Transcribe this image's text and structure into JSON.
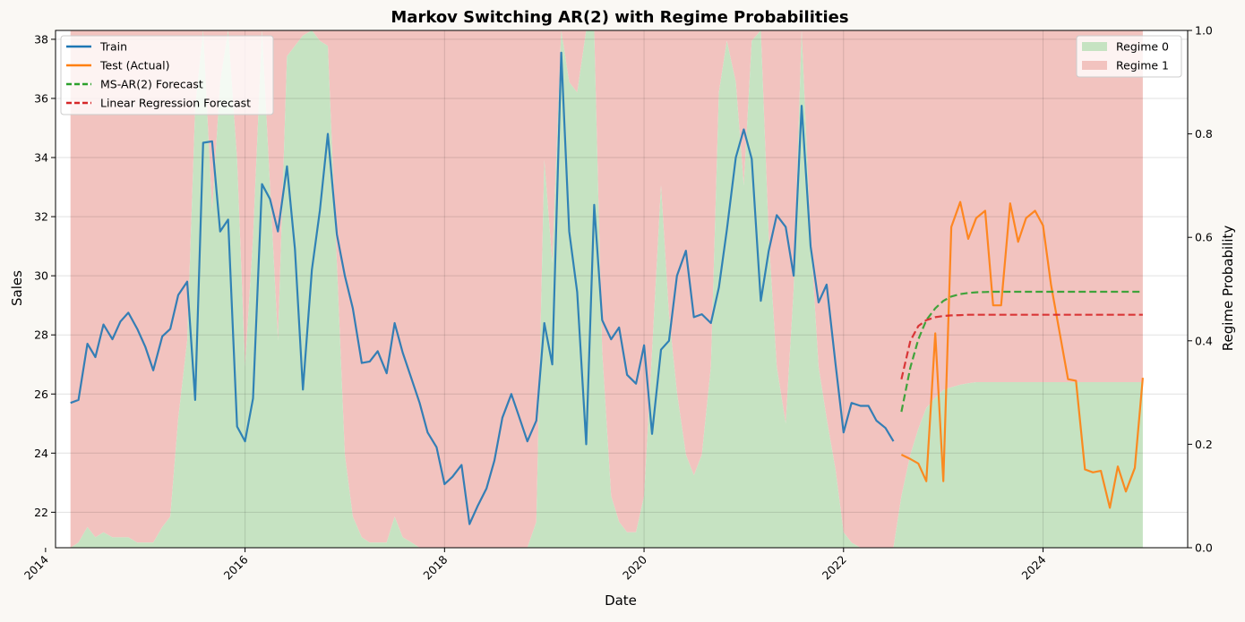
{
  "chart_data": {
    "type": "line",
    "title": "Markov Switching AR(2) with Regime Probabilities",
    "xlabel": "Date",
    "ylabel": "Sales",
    "y2label": "Regime Probability",
    "xlim": [
      2014.1,
      2025.45
    ],
    "ylim": [
      20.8,
      38.3
    ],
    "y2lim": [
      0,
      1
    ],
    "x_ticks": [
      2014,
      2016,
      2018,
      2020,
      2022,
      2024
    ],
    "x_tick_labels": [
      "2014",
      "2016",
      "2018",
      "2020",
      "2022",
      "2024"
    ],
    "y_ticks": [
      22,
      24,
      26,
      28,
      30,
      32,
      34,
      36,
      38
    ],
    "y_tick_labels": [
      "22",
      "24",
      "26",
      "28",
      "30",
      "32",
      "34",
      "36",
      "38"
    ],
    "y2_ticks": [
      0,
      0.2,
      0.4,
      0.6,
      0.8,
      1.0
    ],
    "y2_tick_labels": [
      "0.0",
      "0.2",
      "0.4",
      "0.6",
      "0.8",
      "1.0"
    ],
    "grid": true,
    "legend_left_position": "top-left",
    "legend_right_position": "top-right",
    "colors": {
      "train": "#1f77b4",
      "test": "#ff7f0e",
      "ms_forecast": "#2ca02c",
      "lr_forecast": "#d62728",
      "regime0": "#c6e3c2",
      "regime1": "#f2c3bf"
    },
    "series": [
      {
        "name": "Train",
        "style": "solid",
        "x": [
          2014.25,
          2014.33,
          2014.42,
          2014.5,
          2014.58,
          2014.67,
          2014.75,
          2014.83,
          2014.92,
          2015.0,
          2015.08,
          2015.17,
          2015.25,
          2015.33,
          2015.42,
          2015.5,
          2015.58,
          2015.67,
          2015.75,
          2015.83,
          2015.92,
          2016.0,
          2016.08,
          2016.17,
          2016.25,
          2016.33,
          2016.42,
          2016.5,
          2016.58,
          2016.67,
          2016.75,
          2016.83,
          2016.92,
          2017.0,
          2017.08,
          2017.17,
          2017.25,
          2017.33,
          2017.42,
          2017.5,
          2017.58,
          2017.67,
          2017.75,
          2017.83,
          2017.92,
          2018.0,
          2018.08,
          2018.17,
          2018.25,
          2018.33,
          2018.42,
          2018.5,
          2018.58,
          2018.67,
          2018.75,
          2018.83,
          2018.92,
          2019.0,
          2019.08,
          2019.17,
          2019.25,
          2019.33,
          2019.42,
          2019.5,
          2019.58,
          2019.67,
          2019.75,
          2019.83,
          2019.92,
          2020.0,
          2020.08,
          2020.17,
          2020.25,
          2020.33,
          2020.42,
          2020.5,
          2020.58,
          2020.67,
          2020.75,
          2020.83,
          2020.92,
          2021.0,
          2021.08,
          2021.17,
          2021.25,
          2021.33,
          2021.42,
          2021.5,
          2021.58,
          2021.67,
          2021.75,
          2021.83,
          2021.92,
          2022.0,
          2022.08,
          2022.17,
          2022.25,
          2022.33,
          2022.42,
          2022.5
        ],
        "y": [
          25.7,
          25.8,
          27.7,
          27.25,
          28.35,
          27.85,
          28.45,
          28.75,
          28.2,
          27.6,
          26.8,
          27.95,
          28.2,
          29.35,
          29.8,
          25.8,
          34.5,
          34.55,
          31.5,
          31.9,
          24.9,
          24.4,
          25.85,
          33.1,
          32.6,
          31.5,
          33.7,
          30.9,
          26.15,
          30.2,
          32.2,
          34.8,
          31.4,
          30.0,
          28.9,
          27.05,
          27.1,
          27.45,
          26.7,
          28.4,
          27.4,
          26.5,
          25.7,
          24.7,
          24.2,
          22.95,
          23.2,
          23.6,
          21.6,
          22.2,
          22.8,
          23.75,
          25.2,
          26.0,
          25.2,
          24.4,
          25.1,
          28.4,
          27.0,
          37.55,
          31.5,
          29.45,
          24.3,
          32.4,
          28.5,
          27.85,
          28.25,
          26.65,
          26.35,
          27.65,
          24.65,
          27.5,
          27.8,
          30.0,
          30.85,
          28.6,
          28.7,
          28.4,
          29.6,
          31.55,
          34.0,
          34.95,
          33.95,
          29.15,
          30.85,
          32.05,
          31.65,
          30.0,
          35.75,
          31.0,
          29.1,
          29.7,
          27.0,
          24.7,
          25.7,
          25.6,
          25.6,
          25.1,
          24.85,
          24.4
        ]
      },
      {
        "name": "Test (Actual)",
        "style": "solid",
        "x": [
          2022.58,
          2022.67,
          2022.75,
          2022.83,
          2022.92,
          2023.0,
          2023.08,
          2023.17,
          2023.25,
          2023.33,
          2023.42,
          2023.5,
          2023.58,
          2023.67,
          2023.75,
          2023.83,
          2023.92,
          2024.0,
          2024.08,
          2024.17,
          2024.25,
          2024.33,
          2024.42,
          2024.5,
          2024.58,
          2024.67,
          2024.75,
          2024.83,
          2024.92,
          2025.0
        ],
        "y": [
          23.95,
          23.8,
          23.65,
          23.05,
          28.05,
          23.05,
          31.65,
          32.5,
          31.25,
          31.95,
          32.2,
          29.0,
          29.0,
          32.45,
          31.15,
          31.95,
          32.2,
          31.7,
          29.7,
          28.0,
          26.5,
          26.45,
          23.45,
          23.35,
          23.4,
          22.15,
          23.55,
          22.7,
          23.5,
          26.55
        ]
      },
      {
        "name": "MS-AR(2) Forecast",
        "style": "dashed",
        "x": [
          2022.58,
          2022.67,
          2022.75,
          2022.83,
          2022.92,
          2023.0,
          2023.08,
          2023.17,
          2023.25,
          2023.33,
          2023.42,
          2023.5,
          2023.58,
          2023.67,
          2023.75,
          2023.83,
          2023.92,
          2024.0,
          2024.08,
          2024.17,
          2024.25,
          2024.33,
          2024.42,
          2024.5,
          2024.58,
          2024.67,
          2024.75,
          2024.83,
          2024.92,
          2025.0
        ],
        "y": [
          25.4,
          26.9,
          27.85,
          28.5,
          28.9,
          29.15,
          29.3,
          29.38,
          29.42,
          29.44,
          29.45,
          29.46,
          29.46,
          29.46,
          29.46,
          29.46,
          29.46,
          29.46,
          29.46,
          29.46,
          29.46,
          29.46,
          29.46,
          29.46,
          29.46,
          29.46,
          29.46,
          29.46,
          29.46,
          29.46
        ]
      },
      {
        "name": "Linear Regression Forecast",
        "style": "dashed",
        "x": [
          2022.58,
          2022.67,
          2022.75,
          2022.83,
          2022.92,
          2023.0,
          2023.08,
          2023.17,
          2023.25,
          2023.33,
          2023.42,
          2023.5,
          2023.58,
          2023.67,
          2023.75,
          2023.83,
          2023.92,
          2024.0,
          2024.08,
          2024.17,
          2024.25,
          2024.33,
          2024.42,
          2024.5,
          2024.58,
          2024.67,
          2024.75,
          2024.83,
          2024.92,
          2025.0
        ],
        "y": [
          26.5,
          27.8,
          28.3,
          28.5,
          28.6,
          28.64,
          28.66,
          28.67,
          28.68,
          28.68,
          28.68,
          28.68,
          28.68,
          28.68,
          28.68,
          28.68,
          28.68,
          28.68,
          28.68,
          28.68,
          28.68,
          28.68,
          28.68,
          28.68,
          28.68,
          28.68,
          28.68,
          28.68,
          28.68,
          28.68
        ]
      }
    ],
    "regime_areas": [
      {
        "name": "Regime 0",
        "x": [
          2014.25,
          2014.33,
          2014.42,
          2014.5,
          2014.58,
          2014.67,
          2014.75,
          2014.83,
          2014.92,
          2015.0,
          2015.08,
          2015.17,
          2015.25,
          2015.33,
          2015.42,
          2015.5,
          2015.58,
          2015.67,
          2015.75,
          2015.83,
          2015.92,
          2016.0,
          2016.08,
          2016.17,
          2016.25,
          2016.33,
          2016.42,
          2016.5,
          2016.58,
          2016.67,
          2016.75,
          2016.83,
          2016.92,
          2017.0,
          2017.08,
          2017.17,
          2017.25,
          2017.33,
          2017.42,
          2017.5,
          2017.58,
          2017.67,
          2017.75,
          2017.83,
          2017.92,
          2018.0,
          2018.08,
          2018.17,
          2018.25,
          2018.33,
          2018.42,
          2018.5,
          2018.58,
          2018.67,
          2018.75,
          2018.83,
          2018.92,
          2019.0,
          2019.08,
          2019.17,
          2019.25,
          2019.33,
          2019.42,
          2019.5,
          2019.58,
          2019.67,
          2019.75,
          2019.83,
          2019.92,
          2020.0,
          2020.08,
          2020.17,
          2020.25,
          2020.33,
          2020.42,
          2020.5,
          2020.58,
          2020.67,
          2020.75,
          2020.83,
          2020.92,
          2021.0,
          2021.08,
          2021.17,
          2021.25,
          2021.33,
          2021.42,
          2021.5,
          2021.58,
          2021.67,
          2021.75,
          2021.83,
          2021.92,
          2022.0,
          2022.08,
          2022.17,
          2022.25,
          2022.33,
          2022.42,
          2022.5,
          2022.58,
          2022.67,
          2022.75,
          2022.83,
          2022.92,
          2023.0,
          2023.08,
          2023.17,
          2023.25,
          2023.33,
          2023.42,
          2023.5,
          2023.58,
          2023.67,
          2023.75,
          2023.83,
          2023.92,
          2024.0,
          2024.08,
          2024.17,
          2024.25,
          2024.33,
          2024.42,
          2024.5,
          2024.58,
          2024.67,
          2024.75,
          2024.83,
          2024.92,
          2025.0
        ],
        "y": [
          0.0,
          0.01,
          0.04,
          0.02,
          0.03,
          0.02,
          0.02,
          0.02,
          0.01,
          0.01,
          0.01,
          0.04,
          0.06,
          0.25,
          0.4,
          0.85,
          1.0,
          0.65,
          0.9,
          1.0,
          0.75,
          0.35,
          0.6,
          1.0,
          0.7,
          0.4,
          0.95,
          0.97,
          0.99,
          1.0,
          0.98,
          0.97,
          0.55,
          0.18,
          0.06,
          0.02,
          0.01,
          0.01,
          0.01,
          0.06,
          0.02,
          0.01,
          0.0,
          0.0,
          0.0,
          0.0,
          0.0,
          0.0,
          0.0,
          0.0,
          0.0,
          0.0,
          0.0,
          0.0,
          0.0,
          0.0,
          0.05,
          0.75,
          0.55,
          1.0,
          0.9,
          0.88,
          1.0,
          1.0,
          0.38,
          0.1,
          0.05,
          0.03,
          0.03,
          0.1,
          0.38,
          0.7,
          0.45,
          0.3,
          0.18,
          0.14,
          0.18,
          0.35,
          0.88,
          0.98,
          0.9,
          0.7,
          0.98,
          1.0,
          0.6,
          0.35,
          0.24,
          0.5,
          1.0,
          0.6,
          0.35,
          0.25,
          0.15,
          0.03,
          0.01,
          0.0,
          0.0,
          0.0,
          0.0,
          0.0,
          0.1,
          0.18,
          0.23,
          0.27,
          0.29,
          0.305,
          0.31,
          0.315,
          0.318,
          0.32,
          0.32,
          0.32,
          0.32,
          0.32,
          0.32,
          0.32,
          0.32,
          0.32,
          0.32,
          0.32,
          0.32,
          0.32,
          0.32,
          0.32,
          0.32,
          0.32,
          0.32,
          0.32,
          0.32,
          0.32
        ]
      },
      {
        "name": "Regime 1",
        "fill": "remainder"
      }
    ]
  }
}
